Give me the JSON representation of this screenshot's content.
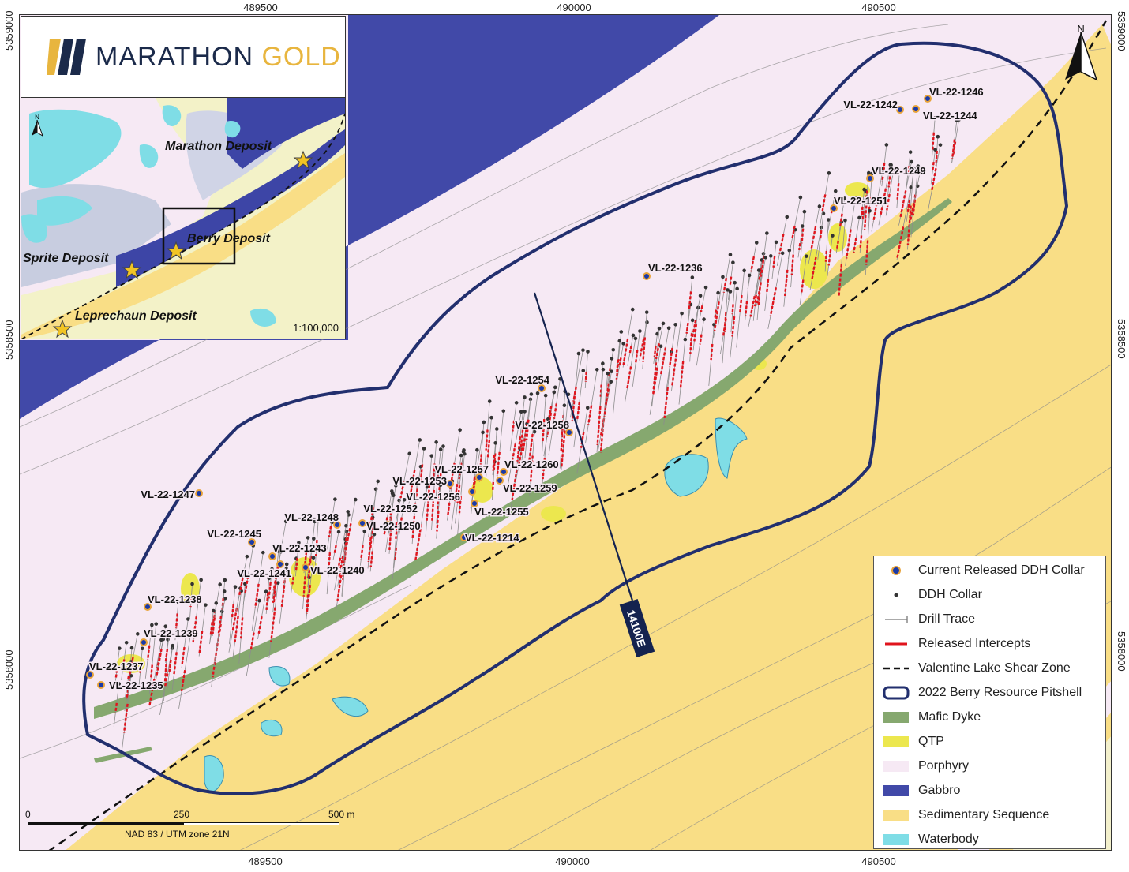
{
  "map": {
    "grid_x_labels": [
      "489500",
      "490000",
      "490500"
    ],
    "grid_y_labels": [
      "5359000",
      "5358500",
      "5358000"
    ],
    "north_label": "N",
    "section_label": "14100E",
    "colors": {
      "porphyry": "#f6e9f4",
      "gabbro": "#4149a8",
      "sedimentary": "#f9de86",
      "mafic_dyke": "#86a86f",
      "qtp": "#ece74e",
      "waterbody": "#7fdde6",
      "pitshell": "#222f6e",
      "intercepts": "#e0141d",
      "collar_ring": "#e8a33a"
    },
    "drill_holes": [
      {
        "label": "VL-22-1246"
      },
      {
        "label": "VL-22-1242"
      },
      {
        "label": "VL-22-1244"
      },
      {
        "label": "VL-22-1249"
      },
      {
        "label": "VL-22-1251"
      },
      {
        "label": "VL-22-1236"
      },
      {
        "label": "VL-22-1254"
      },
      {
        "label": "VL-22-1258"
      },
      {
        "label": "VL-22-1260"
      },
      {
        "label": "VL-22-1257"
      },
      {
        "label": "VL-22-1253"
      },
      {
        "label": "VL-22-1259"
      },
      {
        "label": "VL-22-1256"
      },
      {
        "label": "VL-22-1252"
      },
      {
        "label": "VL-22-1255"
      },
      {
        "label": "VL-22-1248"
      },
      {
        "label": "VL-22-1250"
      },
      {
        "label": "VL-22-1214"
      },
      {
        "label": "VL-22-1247"
      },
      {
        "label": "VL-22-1245"
      },
      {
        "label": "VL-22-1243"
      },
      {
        "label": "VL-22-1241"
      },
      {
        "label": "VL-22-1240"
      },
      {
        "label": "VL-22-1238"
      },
      {
        "label": "VL-22-1239"
      },
      {
        "label": "VL-22-1237"
      },
      {
        "label": "VL-22-1235"
      }
    ]
  },
  "logo": {
    "part1": "MARATHON",
    "part2": "GOLD"
  },
  "inset": {
    "north_label": "N",
    "scale": "1:100,000",
    "deposits": [
      "Marathon Deposit",
      "Berry Deposit",
      "Sprite Deposit",
      "Leprechaun Deposit"
    ]
  },
  "scalebar": {
    "ticks": [
      "0",
      "250",
      "500 m"
    ],
    "projection": "NAD 83 / UTM zone 21N"
  },
  "legend": {
    "items": [
      {
        "label": "Current Released DDH Collar"
      },
      {
        "label": "DDH Collar"
      },
      {
        "label": "Drill Trace"
      },
      {
        "label": "Released Intercepts"
      },
      {
        "label": "Valentine Lake Shear Zone"
      },
      {
        "label": "2022 Berry Resource Pitshell"
      },
      {
        "label": "Mafic Dyke"
      },
      {
        "label": "QTP"
      },
      {
        "label": "Porphyry"
      },
      {
        "label": "Gabbro"
      },
      {
        "label": "Sedimentary Sequence"
      },
      {
        "label": "Waterbody"
      }
    ]
  }
}
